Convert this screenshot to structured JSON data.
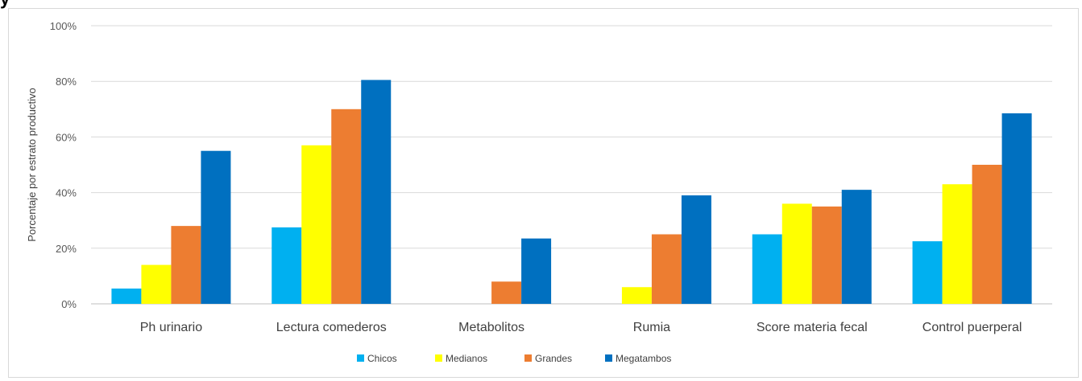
{
  "corner_text": "y",
  "chart_data": {
    "type": "bar",
    "title": "",
    "xlabel": "",
    "ylabel": "Porcentaje por estrato productivo",
    "ylim": [
      0,
      100
    ],
    "yticks": [
      "0%",
      "20%",
      "40%",
      "60%",
      "80%",
      "100%"
    ],
    "ytick_values": [
      0,
      20,
      40,
      60,
      80,
      100
    ],
    "grid": true,
    "legend_position": "bottom",
    "categories": [
      "Ph urinario",
      "Lectura comederos",
      "Metabolitos",
      "Rumia",
      "Score materia fecal",
      "Control puerperal"
    ],
    "series": [
      {
        "name": "Chicos",
        "color": "#00b0f0",
        "values": [
          5.5,
          27.5,
          0,
          0,
          25,
          22.5
        ]
      },
      {
        "name": "Medianos",
        "color": "#ffff00",
        "values": [
          14,
          57,
          0,
          6,
          36,
          43
        ]
      },
      {
        "name": "Grandes",
        "color": "#ed7d31",
        "values": [
          28,
          70,
          8,
          25,
          35,
          50
        ]
      },
      {
        "name": "Megatambos",
        "color": "#0070c0",
        "values": [
          55,
          80.5,
          23.5,
          39,
          41,
          68.5
        ]
      }
    ]
  }
}
